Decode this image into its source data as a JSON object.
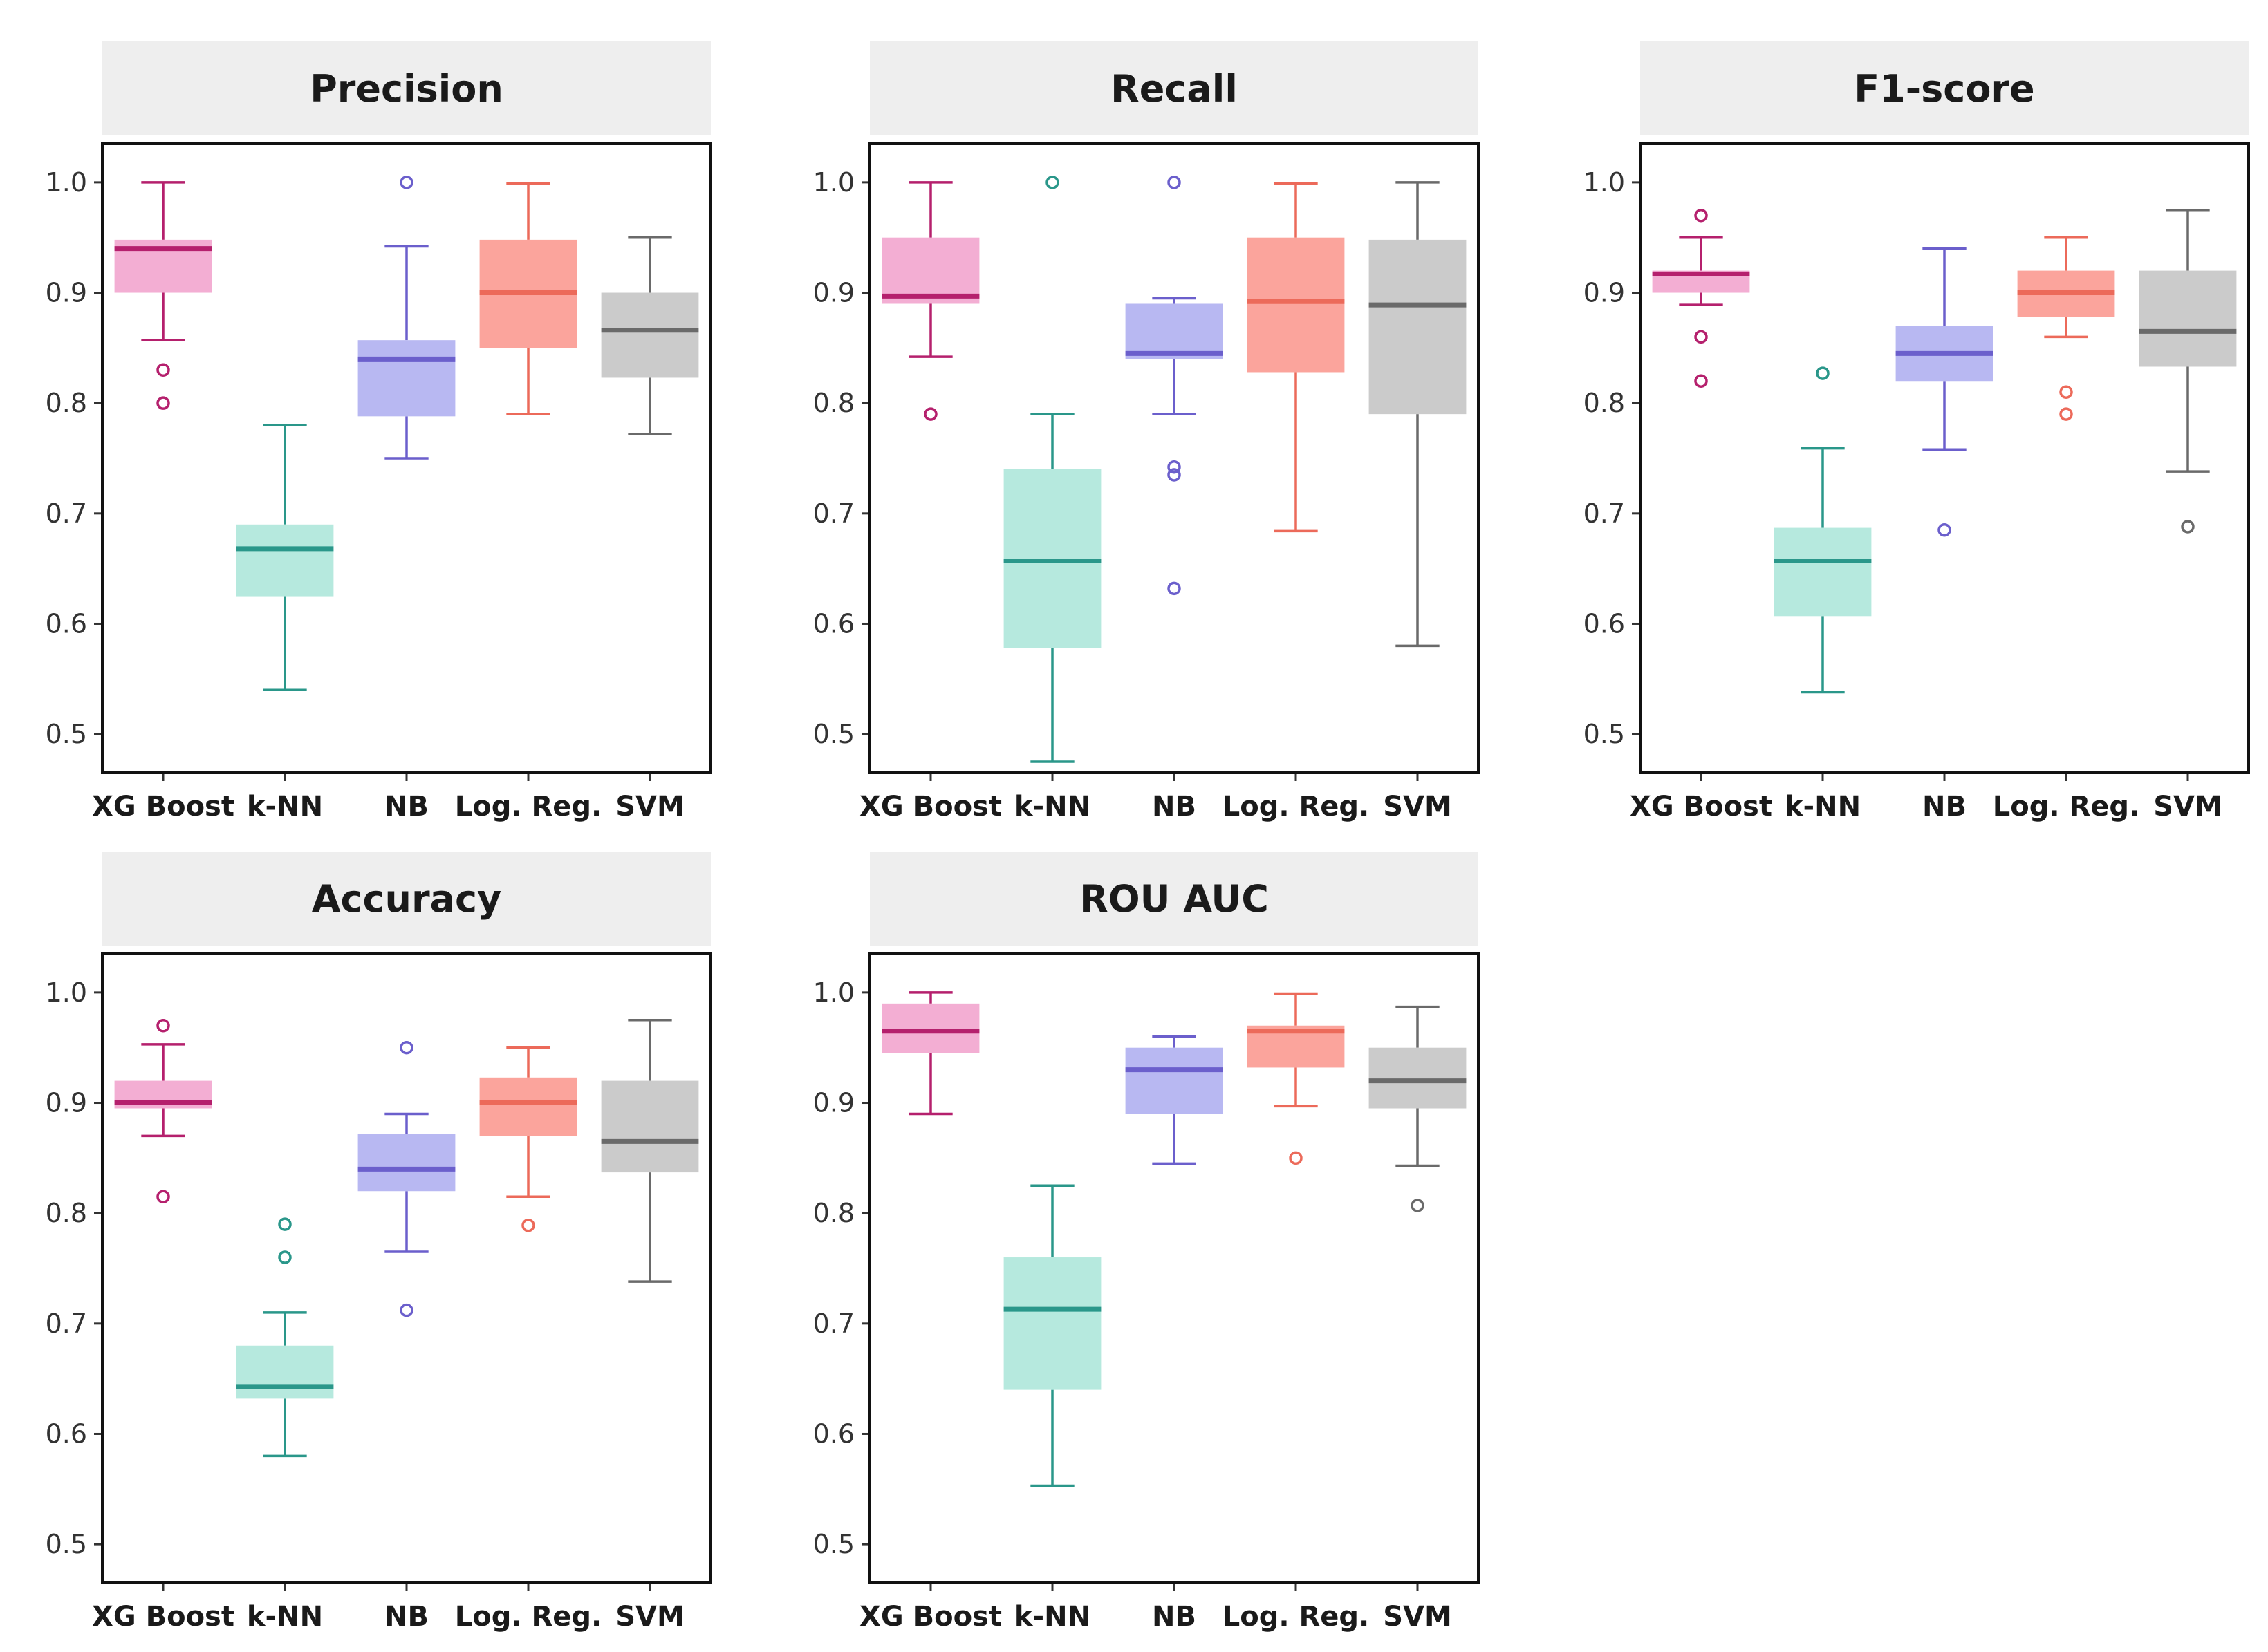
{
  "colors": {
    "XG Boost": {
      "fill": "#f3aed3",
      "line": "#b5206d"
    },
    "k-NN": {
      "fill": "#b6e9de",
      "line": "#2a978a"
    },
    "NB": {
      "fill": "#b8b8f2",
      "line": "#6b5fcc"
    },
    "Log. Reg.": {
      "fill": "#fba49c",
      "line": "#ec6a5a"
    },
    "SVM": {
      "fill": "#cbcbcb",
      "line": "#6a6a6a"
    }
  },
  "chart_data": [
    {
      "type": "box",
      "title": "Precision",
      "categories": [
        "XG Boost",
        "k-NN",
        "NB",
        "Log. Reg.",
        "SVM"
      ],
      "ylim": [
        0.465,
        1.035
      ],
      "yticks": [
        "0.5",
        "0.6",
        "0.7",
        "0.8",
        "0.9",
        "1.0"
      ],
      "boxes": [
        {
          "whislo": 0.857,
          "q1": 0.9,
          "med": 0.94,
          "q3": 0.948,
          "whishi": 1.0,
          "outliers": [
            0.83,
            0.8
          ]
        },
        {
          "whislo": 0.54,
          "q1": 0.625,
          "med": 0.668,
          "q3": 0.69,
          "whishi": 0.78,
          "outliers": []
        },
        {
          "whislo": 0.75,
          "q1": 0.788,
          "med": 0.84,
          "q3": 0.857,
          "whishi": 0.942,
          "outliers": [
            1.0
          ]
        },
        {
          "whislo": 0.79,
          "q1": 0.85,
          "med": 0.9,
          "q3": 0.948,
          "whishi": 0.999,
          "outliers": []
        },
        {
          "whislo": 0.772,
          "q1": 0.823,
          "med": 0.866,
          "q3": 0.9,
          "whishi": 0.95,
          "outliers": []
        }
      ]
    },
    {
      "type": "box",
      "title": "Recall",
      "categories": [
        "XG Boost",
        "k-NN",
        "NB",
        "Log. Reg.",
        "SVM"
      ],
      "ylim": [
        0.465,
        1.035
      ],
      "yticks": [
        "0.5",
        "0.6",
        "0.7",
        "0.8",
        "0.9",
        "1.0"
      ],
      "boxes": [
        {
          "whislo": 0.842,
          "q1": 0.89,
          "med": 0.897,
          "q3": 0.95,
          "whishi": 1.0,
          "outliers": [
            0.79
          ]
        },
        {
          "whislo": 0.475,
          "q1": 0.578,
          "med": 0.657,
          "q3": 0.74,
          "whishi": 0.79,
          "outliers": [
            1.0
          ]
        },
        {
          "whislo": 0.79,
          "q1": 0.84,
          "med": 0.845,
          "q3": 0.89,
          "whishi": 0.895,
          "outliers": [
            1.0,
            0.742,
            0.735,
            0.632
          ]
        },
        {
          "whislo": 0.684,
          "q1": 0.828,
          "med": 0.892,
          "q3": 0.95,
          "whishi": 0.999,
          "outliers": []
        },
        {
          "whislo": 0.58,
          "q1": 0.79,
          "med": 0.889,
          "q3": 0.948,
          "whishi": 1.0,
          "outliers": []
        }
      ]
    },
    {
      "type": "box",
      "title": "F1-score",
      "categories": [
        "XG Boost",
        "k-NN",
        "NB",
        "Log. Reg.",
        "SVM"
      ],
      "ylim": [
        0.465,
        1.035
      ],
      "yticks": [
        "0.5",
        "0.6",
        "0.7",
        "0.8",
        "0.9",
        "1.0"
      ],
      "boxes": [
        {
          "whislo": 0.889,
          "q1": 0.9,
          "med": 0.917,
          "q3": 0.92,
          "whishi": 0.95,
          "outliers": [
            0.97,
            0.86,
            0.82
          ]
        },
        {
          "whislo": 0.538,
          "q1": 0.607,
          "med": 0.657,
          "q3": 0.687,
          "whishi": 0.759,
          "outliers": [
            0.827
          ]
        },
        {
          "whislo": 0.758,
          "q1": 0.82,
          "med": 0.845,
          "q3": 0.87,
          "whishi": 0.94,
          "outliers": [
            0.685
          ]
        },
        {
          "whislo": 0.86,
          "q1": 0.878,
          "med": 0.9,
          "q3": 0.92,
          "whishi": 0.95,
          "outliers": [
            0.81,
            0.79
          ]
        },
        {
          "whislo": 0.738,
          "q1": 0.833,
          "med": 0.865,
          "q3": 0.92,
          "whishi": 0.975,
          "outliers": [
            0.688
          ]
        }
      ]
    },
    {
      "type": "box",
      "title": "Accuracy",
      "categories": [
        "XG Boost",
        "k-NN",
        "NB",
        "Log. Reg.",
        "SVM"
      ],
      "ylim": [
        0.465,
        1.035
      ],
      "yticks": [
        "0.5",
        "0.6",
        "0.7",
        "0.8",
        "0.9",
        "1.0"
      ],
      "boxes": [
        {
          "whislo": 0.87,
          "q1": 0.895,
          "med": 0.9,
          "q3": 0.92,
          "whishi": 0.953,
          "outliers": [
            0.97,
            0.815
          ]
        },
        {
          "whislo": 0.58,
          "q1": 0.632,
          "med": 0.643,
          "q3": 0.68,
          "whishi": 0.71,
          "outliers": [
            0.79,
            0.76
          ]
        },
        {
          "whislo": 0.765,
          "q1": 0.82,
          "med": 0.84,
          "q3": 0.872,
          "whishi": 0.89,
          "outliers": [
            0.95,
            0.712
          ]
        },
        {
          "whislo": 0.815,
          "q1": 0.87,
          "med": 0.9,
          "q3": 0.923,
          "whishi": 0.95,
          "outliers": [
            0.789
          ]
        },
        {
          "whislo": 0.738,
          "q1": 0.837,
          "med": 0.865,
          "q3": 0.92,
          "whishi": 0.975,
          "outliers": []
        }
      ]
    },
    {
      "type": "box",
      "title": "ROU AUC",
      "categories": [
        "XG Boost",
        "k-NN",
        "NB",
        "Log. Reg.",
        "SVM"
      ],
      "ylim": [
        0.465,
        1.035
      ],
      "yticks": [
        "0.5",
        "0.6",
        "0.7",
        "0.8",
        "0.9",
        "1.0"
      ],
      "boxes": [
        {
          "whislo": 0.89,
          "q1": 0.945,
          "med": 0.965,
          "q3": 0.99,
          "whishi": 1.0,
          "outliers": []
        },
        {
          "whislo": 0.553,
          "q1": 0.64,
          "med": 0.713,
          "q3": 0.76,
          "whishi": 0.825,
          "outliers": []
        },
        {
          "whislo": 0.845,
          "q1": 0.89,
          "med": 0.93,
          "q3": 0.95,
          "whishi": 0.96,
          "outliers": []
        },
        {
          "whislo": 0.897,
          "q1": 0.932,
          "med": 0.965,
          "q3": 0.97,
          "whishi": 0.999,
          "outliers": [
            0.85
          ]
        },
        {
          "whislo": 0.843,
          "q1": 0.895,
          "med": 0.92,
          "q3": 0.95,
          "whishi": 0.987,
          "outliers": [
            0.807
          ]
        }
      ]
    }
  ]
}
